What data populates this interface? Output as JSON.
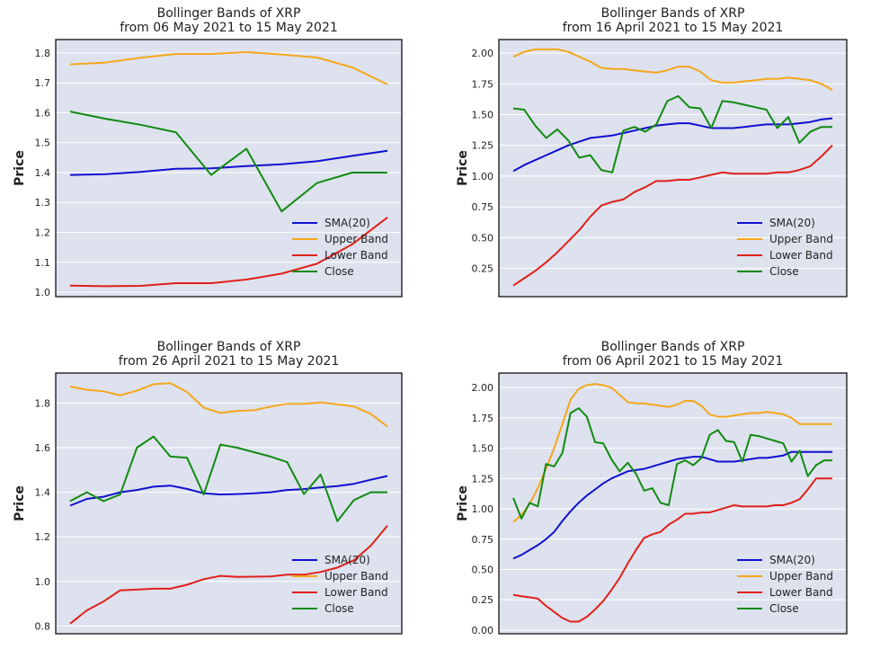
{
  "colors": {
    "sma": "#1010d0",
    "upper": "#f4a71d",
    "lower": "#e0201a",
    "close": "#128a12",
    "plot_bg": "#dde2ee",
    "grid": "#ffffff"
  },
  "chart_data": [
    {
      "type": "line",
      "title": "Bollinger Bands of XRP",
      "subtitle": "from 06 May 2021 to 15 May 2021",
      "xlabel": "",
      "ylabel": "Price",
      "ylim": [
        0.985,
        1.845
      ],
      "yticks": [
        1.0,
        1.1,
        1.2,
        1.3,
        1.4,
        1.5,
        1.6,
        1.7,
        1.8
      ],
      "ytick_labels": [
        "1.0",
        "1.1",
        "1.2",
        "1.3",
        "1.4",
        "1.5",
        "1.6",
        "1.7",
        "1.8"
      ],
      "grid": true,
      "legend_position": "bottom-right",
      "x": [
        0,
        1,
        2,
        3,
        4,
        5,
        6,
        7,
        8,
        9
      ],
      "series": [
        {
          "name": "SMA(20)",
          "color_key": "sma",
          "values": [
            1.392,
            1.395,
            1.402,
            1.413,
            1.414,
            1.422,
            1.428,
            1.438,
            1.456,
            1.473
          ]
        },
        {
          "name": "Upper Band",
          "color_key": "upper",
          "values": [
            1.762,
            1.768,
            1.784,
            1.797,
            1.797,
            1.803,
            1.795,
            1.785,
            1.752,
            1.695
          ]
        },
        {
          "name": "Lower Band",
          "color_key": "lower",
          "values": [
            1.022,
            1.02,
            1.021,
            1.03,
            1.03,
            1.042,
            1.062,
            1.095,
            1.16,
            1.25
          ]
        },
        {
          "name": "Close",
          "color_key": "close",
          "values": [
            1.604,
            1.58,
            1.56,
            1.535,
            1.392,
            1.48,
            1.27,
            1.365,
            1.4,
            1.4
          ]
        }
      ]
    },
    {
      "type": "line",
      "title": "Bollinger Bands of XRP",
      "subtitle": "from 16 April 2021 to 15 May 2021",
      "xlabel": "",
      "ylabel": "Price",
      "ylim": [
        0.02,
        2.11
      ],
      "yticks": [
        0.25,
        0.5,
        0.75,
        1.0,
        1.25,
        1.5,
        1.75,
        2.0
      ],
      "ytick_labels": [
        "0.25",
        "0.50",
        "0.75",
        "1.00",
        "1.25",
        "1.50",
        "1.75",
        "2.00"
      ],
      "grid": true,
      "legend_position": "bottom-right",
      "x": [
        0,
        1,
        2,
        3,
        4,
        5,
        6,
        7,
        8,
        9,
        10,
        11,
        12,
        13,
        14,
        15,
        16,
        17,
        18,
        19,
        20,
        21,
        22,
        23,
        24,
        25,
        26,
        27,
        28,
        29
      ],
      "series": [
        {
          "name": "SMA(20)",
          "color_key": "sma",
          "values": [
            1.04,
            1.09,
            1.13,
            1.17,
            1.21,
            1.25,
            1.28,
            1.31,
            1.32,
            1.33,
            1.35,
            1.37,
            1.39,
            1.41,
            1.42,
            1.43,
            1.43,
            1.41,
            1.39,
            1.39,
            1.39,
            1.4,
            1.41,
            1.42,
            1.42,
            1.42,
            1.43,
            1.44,
            1.46,
            1.47
          ]
        },
        {
          "name": "Upper Band",
          "color_key": "upper",
          "values": [
            1.97,
            2.01,
            2.03,
            2.03,
            2.03,
            2.01,
            1.97,
            1.93,
            1.88,
            1.87,
            1.87,
            1.86,
            1.85,
            1.84,
            1.86,
            1.89,
            1.89,
            1.85,
            1.78,
            1.76,
            1.76,
            1.77,
            1.78,
            1.79,
            1.79,
            1.8,
            1.79,
            1.78,
            1.75,
            1.7
          ]
        },
        {
          "name": "Lower Band",
          "color_key": "lower",
          "values": [
            0.11,
            0.17,
            0.23,
            0.3,
            0.38,
            0.47,
            0.56,
            0.67,
            0.76,
            0.79,
            0.81,
            0.87,
            0.91,
            0.96,
            0.96,
            0.97,
            0.97,
            0.99,
            1.01,
            1.03,
            1.02,
            1.02,
            1.02,
            1.02,
            1.03,
            1.03,
            1.05,
            1.08,
            1.16,
            1.25
          ]
        },
        {
          "name": "Close",
          "color_key": "close",
          "values": [
            1.55,
            1.54,
            1.41,
            1.31,
            1.38,
            1.29,
            1.15,
            1.17,
            1.05,
            1.03,
            1.37,
            1.4,
            1.36,
            1.42,
            1.61,
            1.65,
            1.56,
            1.55,
            1.39,
            1.61,
            1.6,
            1.58,
            1.56,
            1.54,
            1.39,
            1.48,
            1.27,
            1.36,
            1.4,
            1.4
          ]
        }
      ]
    },
    {
      "type": "line",
      "title": "Bollinger Bands of XRP",
      "subtitle": "from 26 April 2021 to 15 May 2021",
      "xlabel": "",
      "ylabel": "Price",
      "ylim": [
        0.765,
        1.935
      ],
      "yticks": [
        0.8,
        1.0,
        1.2,
        1.4,
        1.6,
        1.8
      ],
      "ytick_labels": [
        "0.8",
        "1.0",
        "1.2",
        "1.4",
        "1.6",
        "1.8"
      ],
      "grid": true,
      "legend_position": "bottom-right",
      "x": [
        0,
        1,
        2,
        3,
        4,
        5,
        6,
        7,
        8,
        9,
        10,
        11,
        12,
        13,
        14,
        15,
        16,
        17,
        18,
        19
      ],
      "series": [
        {
          "name": "SMA(20)",
          "color_key": "sma",
          "values": [
            1.34,
            1.37,
            1.38,
            1.4,
            1.41,
            1.425,
            1.43,
            1.415,
            1.395,
            1.39,
            1.392,
            1.395,
            1.4,
            1.41,
            1.414,
            1.422,
            1.428,
            1.438,
            1.456,
            1.473
          ]
        },
        {
          "name": "Upper Band",
          "color_key": "upper",
          "values": [
            1.875,
            1.86,
            1.853,
            1.835,
            1.856,
            1.885,
            1.89,
            1.85,
            1.78,
            1.756,
            1.765,
            1.768,
            1.784,
            1.797,
            1.797,
            1.803,
            1.795,
            1.785,
            1.752,
            1.695
          ]
        },
        {
          "name": "Lower Band",
          "color_key": "lower",
          "values": [
            0.81,
            0.87,
            0.91,
            0.96,
            0.963,
            0.967,
            0.967,
            0.985,
            1.01,
            1.025,
            1.02,
            1.021,
            1.022,
            1.03,
            1.03,
            1.042,
            1.062,
            1.095,
            1.16,
            1.25
          ]
        },
        {
          "name": "Close",
          "color_key": "close",
          "values": [
            1.36,
            1.4,
            1.36,
            1.39,
            1.6,
            1.65,
            1.56,
            1.555,
            1.39,
            1.614,
            1.6,
            1.58,
            1.56,
            1.535,
            1.392,
            1.48,
            1.27,
            1.365,
            1.4,
            1.4
          ]
        }
      ]
    },
    {
      "type": "line",
      "title": "Bollinger Bands of XRP",
      "subtitle": "from 06 April 2021 to 15 May 2021",
      "xlabel": "",
      "ylabel": "Price",
      "ylim": [
        -0.03,
        2.12
      ],
      "yticks": [
        0.0,
        0.25,
        0.5,
        0.75,
        1.0,
        1.25,
        1.5,
        1.75,
        2.0
      ],
      "ytick_labels": [
        "0.00",
        "0.25",
        "0.50",
        "0.75",
        "1.00",
        "1.25",
        "1.50",
        "1.75",
        "2.00"
      ],
      "grid": true,
      "legend_position": "bottom-right",
      "x": [
        0,
        1,
        2,
        3,
        4,
        5,
        6,
        7,
        8,
        9,
        10,
        11,
        12,
        13,
        14,
        15,
        16,
        17,
        18,
        19,
        20,
        21,
        22,
        23,
        24,
        25,
        26,
        27,
        28,
        29,
        30,
        31,
        32,
        33,
        34,
        35,
        36,
        37,
        38,
        39
      ],
      "series": [
        {
          "name": "SMA(20)",
          "color_key": "sma",
          "values": [
            0.59,
            0.62,
            0.66,
            0.7,
            0.75,
            0.81,
            0.9,
            0.98,
            1.05,
            1.11,
            1.16,
            1.21,
            1.25,
            1.28,
            1.31,
            1.32,
            1.33,
            1.35,
            1.37,
            1.39,
            1.41,
            1.42,
            1.43,
            1.43,
            1.41,
            1.39,
            1.39,
            1.39,
            1.4,
            1.41,
            1.42,
            1.42,
            1.43,
            1.44,
            1.47,
            1.47,
            1.47,
            1.47,
            1.47,
            1.47
          ]
        },
        {
          "name": "Upper Band",
          "color_key": "upper",
          "values": [
            0.89,
            0.95,
            1.04,
            1.17,
            1.33,
            1.5,
            1.7,
            1.9,
            1.99,
            2.02,
            2.03,
            2.02,
            2.0,
            1.94,
            1.88,
            1.87,
            1.87,
            1.86,
            1.85,
            1.84,
            1.86,
            1.89,
            1.89,
            1.85,
            1.78,
            1.76,
            1.76,
            1.77,
            1.78,
            1.79,
            1.79,
            1.8,
            1.79,
            1.78,
            1.75,
            1.7,
            1.7,
            1.7,
            1.7,
            1.7
          ]
        },
        {
          "name": "Lower Band",
          "color_key": "lower",
          "values": [
            0.29,
            0.28,
            0.27,
            0.26,
            0.2,
            0.15,
            0.1,
            0.07,
            0.07,
            0.11,
            0.17,
            0.24,
            0.33,
            0.43,
            0.55,
            0.66,
            0.76,
            0.79,
            0.81,
            0.87,
            0.91,
            0.96,
            0.96,
            0.97,
            0.97,
            0.99,
            1.01,
            1.03,
            1.02,
            1.02,
            1.02,
            1.02,
            1.03,
            1.03,
            1.05,
            1.08,
            1.16,
            1.25,
            1.25,
            1.25
          ]
        },
        {
          "name": "Close",
          "color_key": "close",
          "values": [
            1.09,
            0.92,
            1.05,
            1.02,
            1.37,
            1.35,
            1.46,
            1.79,
            1.83,
            1.76,
            1.55,
            1.54,
            1.41,
            1.31,
            1.38,
            1.29,
            1.15,
            1.17,
            1.05,
            1.03,
            1.37,
            1.4,
            1.36,
            1.42,
            1.61,
            1.65,
            1.56,
            1.55,
            1.39,
            1.61,
            1.6,
            1.58,
            1.56,
            1.54,
            1.39,
            1.48,
            1.27,
            1.36,
            1.4,
            1.4
          ]
        }
      ]
    }
  ]
}
